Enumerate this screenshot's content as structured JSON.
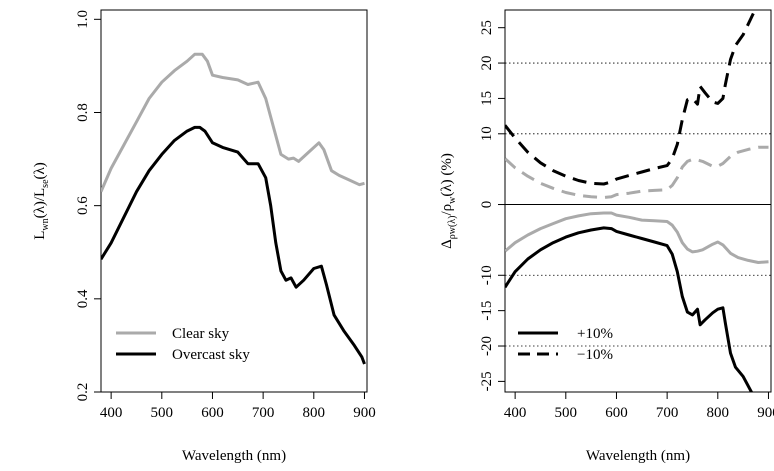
{
  "chart_data": [
    {
      "type": "line",
      "xlabel": "Wavelength (nm)",
      "ylabel": "L_wn(λ)/L_se(λ)",
      "xlim": [
        380,
        905
      ],
      "ylim": [
        0.2,
        1.02
      ],
      "xticks": [
        400,
        500,
        600,
        700,
        800,
        900
      ],
      "yticks": [
        0.2,
        0.4,
        0.6,
        0.8,
        1.0
      ],
      "ytick_labels": [
        "0.2",
        "0.4",
        "0.6",
        "0.8",
        "1.0"
      ],
      "legend_position": "bottom-left",
      "series": [
        {
          "name": "Clear sky",
          "color": "#aaaaaa",
          "dash": "solid",
          "x": [
            380,
            400,
            425,
            450,
            475,
            500,
            525,
            550,
            565,
            580,
            590,
            600,
            620,
            650,
            670,
            690,
            705,
            720,
            735,
            750,
            760,
            770,
            790,
            810,
            820,
            835,
            850,
            870,
            890,
            900
          ],
          "y": [
            0.63,
            0.68,
            0.73,
            0.78,
            0.83,
            0.865,
            0.89,
            0.91,
            0.925,
            0.925,
            0.91,
            0.88,
            0.875,
            0.87,
            0.86,
            0.865,
            0.83,
            0.77,
            0.71,
            0.7,
            0.702,
            0.695,
            0.715,
            0.735,
            0.72,
            0.675,
            0.665,
            0.655,
            0.645,
            0.648
          ]
        },
        {
          "name": "Overcast sky",
          "color": "#000000",
          "dash": "solid",
          "x": [
            380,
            400,
            425,
            450,
            475,
            500,
            525,
            550,
            565,
            575,
            585,
            600,
            620,
            650,
            670,
            690,
            705,
            715,
            725,
            735,
            745,
            755,
            765,
            780,
            800,
            815,
            825,
            840,
            860,
            880,
            895,
            900
          ],
          "y": [
            0.485,
            0.52,
            0.575,
            0.63,
            0.675,
            0.71,
            0.74,
            0.76,
            0.768,
            0.768,
            0.76,
            0.735,
            0.725,
            0.715,
            0.69,
            0.69,
            0.66,
            0.6,
            0.52,
            0.46,
            0.44,
            0.445,
            0.425,
            0.44,
            0.465,
            0.47,
            0.43,
            0.365,
            0.33,
            0.3,
            0.275,
            0.26
          ]
        }
      ]
    },
    {
      "type": "line",
      "xlabel": "Wavelength (nm)",
      "ylabel": "Δρw(λ)/ρw(λ)  (%)",
      "xlim": [
        380,
        905
      ],
      "ylim": [
        -26.5,
        27.5
      ],
      "xticks": [
        400,
        500,
        600,
        700,
        800,
        900
      ],
      "yticks": [
        -25,
        -20,
        -15,
        -10,
        0,
        10,
        15,
        20,
        25
      ],
      "ytick_labels": [
        "-25",
        "-20",
        "-15",
        "-10",
        "0",
        "10",
        "15",
        "20",
        "25"
      ],
      "reference_lines": [
        -20,
        -10,
        10,
        20
      ],
      "zero_line": 0,
      "legend_position": "bottom-left",
      "legend": [
        {
          "label": "+10%",
          "dash": "solid"
        },
        {
          "label": "−10%",
          "dash": "dashed"
        }
      ],
      "series": [
        {
          "color": "#000000",
          "dash": "dashed",
          "x": [
            380,
            400,
            425,
            450,
            475,
            500,
            525,
            550,
            575,
            590,
            600,
            625,
            650,
            675,
            700,
            710,
            720,
            730,
            740,
            750,
            760,
            765,
            775,
            790,
            800,
            810,
            815,
            825,
            835,
            850,
            870
          ],
          "y": [
            11.2,
            9.4,
            7.4,
            5.9,
            4.8,
            4.0,
            3.4,
            3.0,
            2.9,
            3.2,
            3.6,
            4.1,
            4.6,
            5.1,
            5.5,
            6.5,
            8.5,
            12.0,
            14.8,
            15.0,
            14.2,
            16.7,
            15.8,
            14.5,
            14.3,
            15.0,
            17.0,
            20.5,
            22.5,
            24.0,
            27.0
          ]
        },
        {
          "color": "#aaaaaa",
          "dash": "dashed",
          "x": [
            380,
            400,
            425,
            450,
            475,
            500,
            525,
            550,
            575,
            590,
            600,
            625,
            650,
            675,
            700,
            710,
            720,
            730,
            740,
            750,
            760,
            770,
            790,
            800,
            810,
            825,
            840,
            860,
            880,
            900
          ],
          "y": [
            6.5,
            5.2,
            4.0,
            3.0,
            2.3,
            1.7,
            1.3,
            1.1,
            1.0,
            1.1,
            1.4,
            1.6,
            1.9,
            2.0,
            2.1,
            2.7,
            3.8,
            5.3,
            6.1,
            6.4,
            6.3,
            6.1,
            5.4,
            5.4,
            5.8,
            6.8,
            7.4,
            7.8,
            8.1,
            8.1
          ]
        },
        {
          "color": "#aaaaaa",
          "dash": "solid",
          "x": [
            380,
            400,
            425,
            450,
            475,
            500,
            525,
            550,
            575,
            590,
            600,
            625,
            650,
            675,
            700,
            710,
            720,
            730,
            740,
            750,
            760,
            770,
            790,
            800,
            810,
            825,
            840,
            860,
            880,
            900
          ],
          "y": [
            -6.6,
            -5.4,
            -4.3,
            -3.4,
            -2.7,
            -2.0,
            -1.6,
            -1.3,
            -1.2,
            -1.2,
            -1.5,
            -1.8,
            -2.2,
            -2.3,
            -2.4,
            -2.9,
            -3.9,
            -5.4,
            -6.3,
            -6.7,
            -6.6,
            -6.4,
            -5.6,
            -5.3,
            -5.7,
            -6.9,
            -7.5,
            -7.9,
            -8.2,
            -8.1
          ]
        },
        {
          "color": "#000000",
          "dash": "solid",
          "x": [
            380,
            400,
            425,
            450,
            475,
            500,
            525,
            550,
            575,
            590,
            600,
            625,
            650,
            675,
            700,
            710,
            720,
            730,
            740,
            750,
            760,
            765,
            775,
            790,
            800,
            810,
            815,
            825,
            835,
            850,
            870
          ],
          "y": [
            -11.7,
            -9.5,
            -7.7,
            -6.4,
            -5.4,
            -4.6,
            -4.0,
            -3.6,
            -3.3,
            -3.4,
            -3.8,
            -4.3,
            -4.8,
            -5.3,
            -5.8,
            -7.0,
            -9.5,
            -13.0,
            -15.2,
            -15.6,
            -14.8,
            -17.0,
            -16.3,
            -15.3,
            -14.8,
            -14.6,
            -16.8,
            -21.0,
            -23.0,
            -24.3,
            -27.0
          ]
        }
      ]
    }
  ]
}
